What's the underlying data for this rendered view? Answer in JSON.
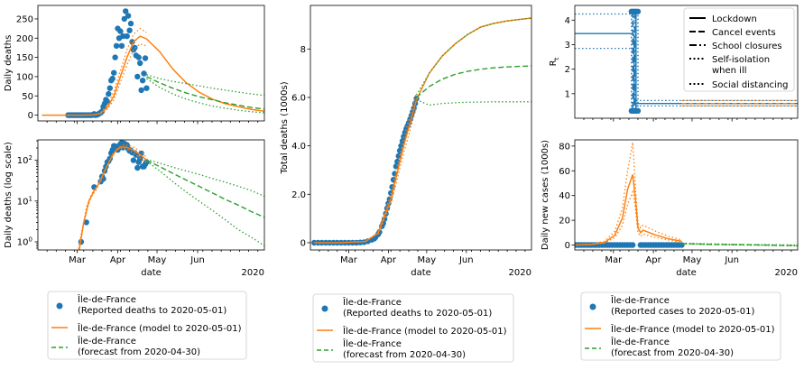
{
  "colors": {
    "reported": "#1f77b4",
    "model": "#ff7f0e",
    "forecast": "#2ca02c",
    "black": "#000000"
  },
  "chart_data": [
    {
      "id": "daily-deaths",
      "type": "scatter",
      "ylabel": "Daily deaths",
      "ylim": [
        -15,
        285
      ],
      "yticks": [
        0,
        50,
        100,
        150,
        200,
        250
      ],
      "yticklabels": [
        "0",
        "50",
        "100",
        "150",
        "200",
        "250"
      ],
      "xlim": [
        -23,
        150
      ],
      "x_ticklabels_shown": false,
      "reported": {
        "x": [
          0,
          1,
          2,
          3,
          4,
          5,
          6,
          7,
          8,
          9,
          10,
          11,
          12,
          13,
          14,
          15,
          16,
          17,
          18,
          19,
          20,
          21,
          22,
          23,
          24,
          25,
          26,
          27,
          28,
          29,
          30,
          31,
          32,
          33,
          34,
          35,
          36,
          37,
          38,
          39,
          40,
          41,
          42,
          43,
          44,
          45,
          46,
          47,
          48,
          49,
          50,
          51,
          52,
          53,
          54,
          55,
          56,
          57,
          58,
          59,
          60
        ],
        "y": [
          0,
          0,
          0,
          0,
          0,
          0,
          0,
          0,
          0,
          0,
          0,
          0,
          0,
          0,
          0,
          0,
          0,
          0,
          0,
          1,
          3,
          0,
          1,
          2,
          5,
          6,
          10,
          22,
          30,
          40,
          35,
          55,
          70,
          90,
          95,
          110,
          150,
          180,
          225,
          200,
          218,
          180,
          205,
          250,
          270,
          205,
          258,
          220,
          238,
          190,
          170,
          175,
          155,
          100,
          150,
          135,
          65,
          90,
          108,
          148,
          70
        ]
      },
      "model": {
        "x": [
          -20,
          0,
          10,
          20,
          25,
          30,
          35,
          40,
          45,
          50,
          55,
          60,
          70,
          80,
          90,
          100,
          110,
          120,
          130,
          140,
          150
        ],
        "y": [
          0,
          0,
          0,
          1,
          5,
          20,
          50,
          100,
          150,
          190,
          205,
          198,
          165,
          120,
          85,
          60,
          42,
          30,
          22,
          15,
          10
        ]
      },
      "model_low": {
        "x": [
          25,
          30,
          35,
          40,
          45,
          50,
          55,
          60
        ],
        "y": [
          3,
          15,
          40,
          85,
          130,
          170,
          185,
          180
        ]
      },
      "model_high": {
        "x": [
          25,
          30,
          35,
          40,
          45,
          50,
          55,
          60
        ],
        "y": [
          7,
          25,
          62,
          115,
          170,
          210,
          225,
          215
        ]
      },
      "forecast": {
        "x": [
          60,
          70,
          80,
          90,
          100,
          110,
          120,
          130,
          140,
          150
        ],
        "y": [
          100,
          84,
          70,
          58,
          48,
          40,
          32,
          26,
          20,
          16
        ]
      },
      "forecast_low": {
        "x": [
          60,
          70,
          80,
          90,
          100,
          110,
          120,
          130,
          140,
          150
        ],
        "y": [
          95,
          72,
          55,
          42,
          32,
          24,
          18,
          13,
          9,
          6
        ]
      },
      "forecast_high": {
        "x": [
          60,
          70,
          80,
          90,
          100,
          110,
          120,
          130,
          140,
          150
        ],
        "y": [
          105,
          95,
          88,
          82,
          76,
          70,
          65,
          60,
          55,
          51
        ]
      }
    },
    {
      "id": "daily-deaths-log",
      "type": "scatter",
      "ylabel": "Daily deaths (log scale)",
      "yscale": "log",
      "ylim_log": [
        -0.2,
        2.5
      ],
      "yticks": [
        0,
        1,
        2
      ],
      "yticklabels": [
        "10^0",
        "10^1",
        "10^2"
      ],
      "xlim": [
        -23,
        150
      ],
      "xticks": [
        7,
        38,
        68,
        99
      ],
      "xticklabels": [
        "Mar",
        "Apr",
        "May",
        "Jun"
      ],
      "xlabel": "date",
      "year_label": "2020",
      "reported": {
        "x": [
          10,
          14,
          20,
          25,
          26,
          27,
          28,
          29,
          30,
          31,
          32,
          33,
          34,
          35,
          36,
          37,
          38,
          39,
          40,
          41,
          42,
          43,
          44,
          45,
          46,
          47,
          48,
          49,
          50,
          51,
          52,
          53,
          54,
          55,
          56,
          57,
          58,
          59,
          60
        ],
        "y": [
          1,
          3,
          22,
          30,
          40,
          35,
          55,
          70,
          90,
          95,
          110,
          150,
          180,
          225,
          200,
          218,
          180,
          205,
          250,
          270,
          205,
          258,
          220,
          238,
          190,
          170,
          175,
          155,
          100,
          150,
          135,
          65,
          90,
          108,
          148,
          70,
          70,
          80,
          90
        ]
      },
      "model": {
        "x": [
          8,
          12,
          16,
          20,
          24,
          28,
          32,
          36,
          40,
          44,
          48,
          52,
          56,
          60
        ],
        "y": [
          0.5,
          3,
          10,
          18,
          28,
          55,
          100,
          165,
          210,
          210,
          190,
          160,
          130,
          100
        ]
      },
      "model_low": {
        "x": [
          6,
          10,
          14,
          18,
          22,
          26,
          30,
          34,
          38,
          42,
          46,
          50,
          54,
          58,
          60
        ],
        "y": [
          0.3,
          1.5,
          6,
          13,
          20,
          35,
          75,
          140,
          190,
          200,
          180,
          150,
          120,
          95,
          90
        ]
      },
      "model_high": {
        "x": [
          10,
          14,
          18,
          22,
          26,
          30,
          34,
          38,
          42,
          46,
          50,
          54,
          58,
          60
        ],
        "y": [
          1.2,
          7,
          15,
          22,
          40,
          75,
          130,
          200,
          235,
          235,
          210,
          175,
          140,
          115
        ]
      },
      "forecast": {
        "x": [
          60,
          70,
          80,
          90,
          100,
          110,
          120,
          130,
          140,
          150
        ],
        "y": [
          100,
          70,
          48,
          33,
          23,
          16,
          11,
          8,
          5.5,
          4
        ]
      },
      "forecast_low": {
        "x": [
          60,
          70,
          80,
          90,
          100,
          110,
          120,
          130,
          140,
          150
        ],
        "y": [
          95,
          55,
          30,
          17,
          10,
          6,
          3.5,
          2,
          1.3,
          0.8
        ]
      },
      "forecast_high": {
        "x": [
          60,
          70,
          80,
          90,
          100,
          110,
          120,
          130,
          140,
          150
        ],
        "y": [
          105,
          85,
          68,
          55,
          45,
          36,
          29,
          23,
          18,
          13
        ]
      }
    },
    {
      "id": "total-deaths",
      "type": "scatter",
      "ylabel": "Total deaths (1000s)",
      "ylim": [
        -0.3,
        9.8
      ],
      "yticks": [
        0,
        2,
        4,
        6,
        8
      ],
      "yticklabels": [
        "0",
        "2.0",
        "4.0",
        "6.0",
        "8"
      ],
      "xlim": [
        -23,
        150
      ],
      "xticks": [
        7,
        38,
        68,
        99
      ],
      "xticklabels": [
        "Mar",
        "Apr",
        "May",
        "Jun"
      ],
      "xlabel": "date",
      "year_label": "2020",
      "reported": {
        "x": [
          -20,
          -17,
          -14,
          -11,
          -8,
          -5,
          -2,
          1,
          4,
          7,
          10,
          13,
          16,
          19,
          22,
          25,
          27,
          28,
          30,
          31,
          33,
          34,
          35,
          36,
          37,
          38,
          39,
          40,
          41,
          42,
          43,
          44,
          45,
          46,
          47,
          48,
          49,
          50,
          51,
          52,
          53,
          54,
          55,
          56,
          57,
          58,
          59,
          60
        ],
        "y": [
          0,
          0,
          0,
          0,
          0,
          0,
          0,
          0,
          0,
          0,
          0,
          0,
          0.01,
          0.02,
          0.06,
          0.12,
          0.17,
          0.23,
          0.35,
          0.44,
          0.68,
          0.8,
          0.98,
          1.2,
          1.42,
          1.62,
          1.8,
          2.05,
          2.3,
          2.6,
          2.85,
          3.15,
          3.35,
          3.58,
          3.8,
          4.0,
          4.2,
          4.38,
          4.55,
          4.7,
          4.82,
          4.95,
          5.1,
          5.25,
          5.4,
          5.55,
          5.75,
          5.95
        ]
      },
      "model": {
        "x": [
          -20,
          0,
          20,
          30,
          40,
          50,
          60,
          70,
          80,
          90,
          100,
          110,
          120,
          130,
          140,
          150
        ],
        "y": [
          0,
          0,
          0.05,
          0.4,
          1.8,
          4.0,
          5.9,
          7.0,
          7.7,
          8.2,
          8.6,
          8.9,
          9.05,
          9.15,
          9.22,
          9.28
        ]
      },
      "model_low": {
        "x": [
          30,
          40,
          50,
          60
        ],
        "y": [
          0.35,
          1.6,
          3.7,
          5.6
        ]
      },
      "model_high": {
        "x": [
          30,
          40,
          50,
          60
        ],
        "y": [
          0.45,
          2.0,
          4.3,
          6.2
        ]
      },
      "forecast": {
        "x": [
          60,
          70,
          80,
          90,
          100,
          110,
          120,
          130,
          140,
          150
        ],
        "y": [
          6.0,
          6.45,
          6.75,
          6.95,
          7.08,
          7.16,
          7.22,
          7.26,
          7.28,
          7.3
        ]
      },
      "forecast_low": {
        "x": [
          60,
          70,
          80,
          90,
          100,
          110,
          120,
          130,
          140,
          150
        ],
        "y": [
          5.9,
          5.68,
          5.75,
          5.78,
          5.8,
          5.81,
          5.82,
          5.82,
          5.82,
          5.82
        ]
      },
      "forecast_high": {
        "x": [
          60,
          70,
          80,
          90,
          100,
          110,
          120,
          130,
          140,
          150
        ],
        "y": [
          6.1,
          7.0,
          7.7,
          8.2,
          8.6,
          8.9,
          9.05,
          9.15,
          9.22,
          9.28
        ]
      }
    },
    {
      "id": "rt",
      "type": "line",
      "ylabel": "R_t",
      "ylim": [
        0,
        4.6
      ],
      "yticks": [
        1,
        2,
        3,
        4
      ],
      "yticklabels": [
        "1",
        "2",
        "3",
        "4"
      ],
      "xlim": [
        -23,
        150
      ],
      "x_ticklabels_shown": false,
      "model": {
        "x": [
          -23,
          20,
          23,
          23,
          150
        ],
        "y": [
          3.45,
          3.45,
          3.4,
          0.6,
          0.6
        ]
      },
      "model_low": {
        "x": [
          -23,
          23,
          23,
          150
        ],
        "y": [
          2.85,
          2.85,
          0.5,
          0.5
        ]
      },
      "model_high": {
        "x": [
          -23,
          23,
          23,
          150
        ],
        "y": [
          4.25,
          4.25,
          0.72,
          0.72
        ]
      },
      "interventions": [
        {
          "name": "Lockdown",
          "x": 24.5,
          "style": "solid"
        },
        {
          "name": "Cancel events",
          "x": 22,
          "style": "dashed"
        },
        {
          "name": "School closures",
          "x": 23.5,
          "style": "dashdot"
        },
        {
          "name": "Self-isolation when ill",
          "x": 21,
          "style": "dotted"
        },
        {
          "name": "Social distancing",
          "x": 26,
          "style": "dotted"
        }
      ],
      "intervention_markers": {
        "x": [
          21,
          22,
          23.5,
          24.5,
          26
        ],
        "y_top": 4.35,
        "y_bottom": 0.3
      },
      "legend": {
        "placement": "upper-right",
        "entries": [
          "Lockdown",
          "Cancel events",
          "School closures",
          "Self-isolation\nwhen ill",
          "Social distancing"
        ]
      }
    },
    {
      "id": "new-cases",
      "type": "scatter",
      "ylabel": "Daily new cases (1000s)",
      "ylim": [
        -4,
        85
      ],
      "yticks": [
        0,
        20,
        40,
        60,
        80
      ],
      "yticklabels": [
        "0",
        "20",
        "40",
        "60",
        "80"
      ],
      "xlim": [
        -23,
        150
      ],
      "xticks": [
        7,
        38,
        68,
        99
      ],
      "xticklabels": [
        "Mar",
        "Apr",
        "May",
        "Jun"
      ],
      "xlabel": "date",
      "year_label": "2020",
      "reported": {
        "x": [
          -22,
          -20,
          -18,
          -16,
          -14,
          -12,
          -10,
          -8,
          -6,
          -4,
          -2,
          0,
          2,
          4,
          6,
          8,
          10,
          12,
          14,
          16,
          18,
          20,
          22,
          28,
          30,
          32,
          34,
          36,
          38,
          40,
          42,
          44,
          46,
          48,
          50,
          52,
          54,
          56,
          58,
          60
        ],
        "y": [
          0,
          0,
          0,
          0,
          0,
          0,
          0,
          0,
          0,
          0,
          0,
          0,
          0,
          0,
          0,
          0,
          0,
          0,
          0,
          0,
          0,
          0,
          0,
          0,
          0,
          0,
          0,
          0,
          0,
          0,
          0,
          0,
          0,
          0,
          0,
          0,
          0,
          0,
          0,
          0
        ]
      },
      "model": {
        "x": [
          -23,
          -10,
          0,
          8,
          14,
          18,
          22,
          24,
          26,
          28,
          30,
          40,
          50,
          60
        ],
        "y": [
          0,
          0.5,
          2,
          8,
          22,
          45,
          57,
          38,
          14,
          10,
          12,
          8,
          5,
          3
        ]
      },
      "model_low": {
        "x": [
          -23,
          -10,
          0,
          8,
          14,
          18,
          22,
          24,
          26,
          28,
          30,
          40,
          50,
          60
        ],
        "y": [
          0,
          0.3,
          1.5,
          6,
          16,
          33,
          43,
          30,
          10,
          7,
          9,
          6,
          4,
          2
        ]
      },
      "model_high": {
        "x": [
          -23,
          -10,
          0,
          8,
          14,
          18,
          22,
          24,
          26,
          28,
          30,
          40,
          50,
          60
        ],
        "y": [
          0,
          0.8,
          3,
          11,
          30,
          60,
          83,
          48,
          18,
          14,
          16,
          11,
          7,
          4
        ]
      },
      "forecast": {
        "x": [
          60,
          80,
          100,
          120,
          150
        ],
        "y": [
          1.2,
          0.6,
          0.3,
          0.1,
          -0.5
        ]
      },
      "forecast_low": {
        "x": [
          60,
          80,
          100,
          120,
          150
        ],
        "y": [
          1,
          0.4,
          0.1,
          -0.2,
          -0.7
        ]
      },
      "forecast_high": {
        "x": [
          60,
          80,
          100,
          120,
          150
        ],
        "y": [
          1.5,
          1,
          0.6,
          0.3,
          0
        ]
      }
    }
  ],
  "legends": {
    "left": {
      "reported": "Île-de-France\n(Reported deaths to  2020-05-01)",
      "model": "Île-de-France (model to  2020-05-01)",
      "forecast": "Île-de-France\n(forecast from  2020-04-30)"
    },
    "middle": {
      "reported": "Île-de-France\n(Reported deaths to  2020-05-01)",
      "model": "Île-de-France (model to  2020-05-01)",
      "forecast": "Île-de-France\n(forecast from  2020-04-30)"
    },
    "right": {
      "reported": "Île-de-France\n(Reported cases to  2020-05-01)",
      "model": "Île-de-France (model to  2020-05-01)",
      "forecast": "Île-de-France\n(forecast from  2020-04-30)"
    }
  }
}
